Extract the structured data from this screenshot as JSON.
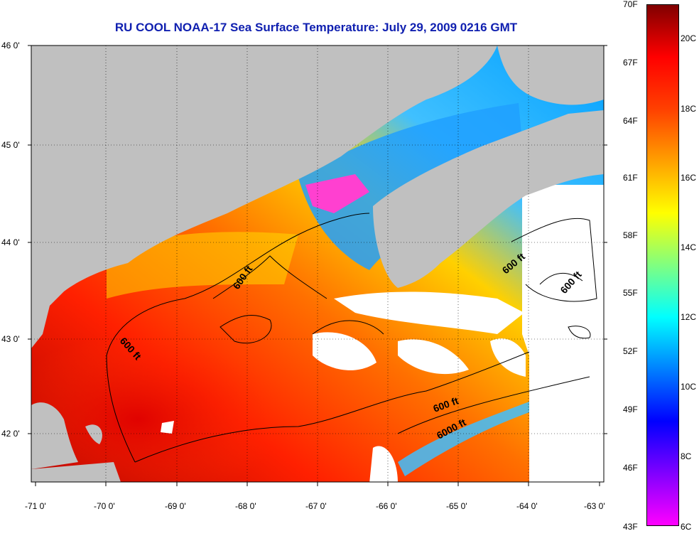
{
  "title": "RU COOL  NOAA-17  Sea Surface Temperature:  July 29, 2009 0216 GMT",
  "map": {
    "lat_ticks": [
      "46 0'",
      "45 0'",
      "44 0'",
      "43 0'",
      "42 0'"
    ],
    "lon_ticks": [
      "-71 0'",
      "-70 0'",
      "-69 0'",
      "-68 0'",
      "-67 0'",
      "-66 0'",
      "-65 0'",
      "-64 0'",
      "-63 0'"
    ],
    "land_color": "#c0c0c0",
    "cloud_color": "#ffffff",
    "contour_labels": [
      "600 ft",
      "600 ft",
      "600 ft",
      "600 ft",
      "600 ft",
      "6000 ft"
    ]
  },
  "colorbar": {
    "fahrenheit_labels": [
      "70F",
      "67F",
      "64F",
      "61F",
      "58F",
      "55F",
      "52F",
      "49F",
      "46F",
      "43F"
    ],
    "celsius_labels": [
      "20C",
      "18C",
      "16C",
      "14C",
      "12C",
      "10C",
      "8C",
      "6C"
    ],
    "colors": [
      "#ff00ff",
      "#8000ff",
      "#0000ff",
      "#0080ff",
      "#00ffff",
      "#80ff80",
      "#ffff00",
      "#ffa000",
      "#ff4000",
      "#ff0000",
      "#800000"
    ]
  }
}
